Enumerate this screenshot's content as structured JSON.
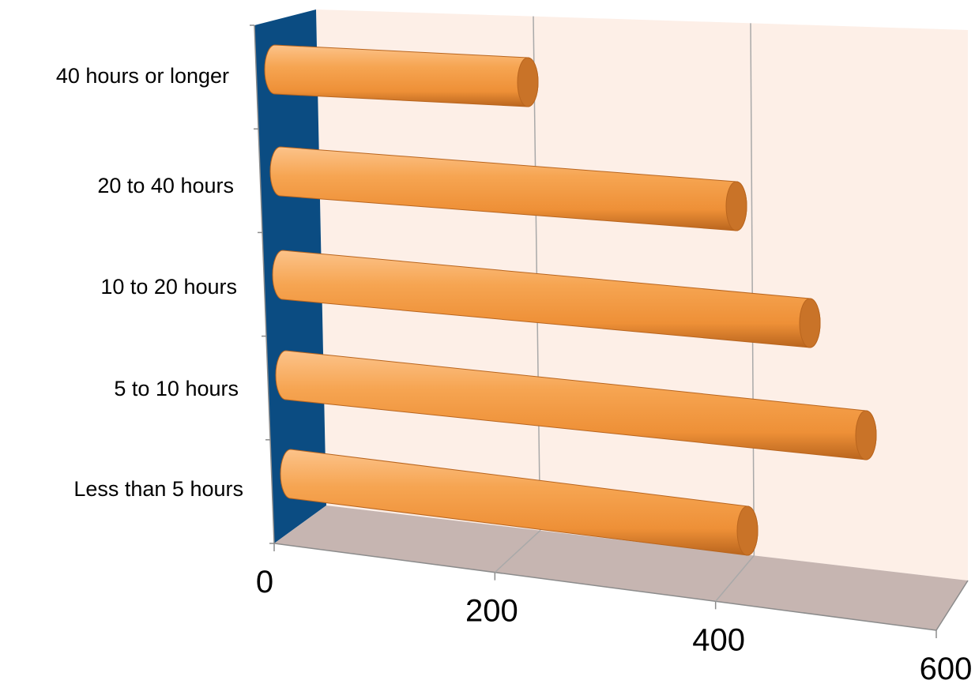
{
  "colors": {
    "back_wall": "#fdefe7",
    "side_wall": "#0b4c82",
    "floor": "#c6b5b1",
    "grid": "#a9a9a9",
    "bar_light": "#fbb36e",
    "bar_mid": "#f39a45",
    "bar_dark": "#b9651e",
    "bar_cap": "#c97328"
  },
  "chart_data": {
    "type": "bar",
    "orientation": "horizontal",
    "style": "3d-cylinder",
    "title": "",
    "xlabel": "",
    "ylabel": "",
    "categories": [
      "Less than 5 hours",
      "5 to 10 hours",
      "10 to 20 hours",
      "20 to 40 hours",
      "40 hours or longer"
    ],
    "values": [
      420,
      535,
      480,
      425,
      245
    ],
    "xlim": [
      0,
      600
    ],
    "xticks": [
      "0",
      "200",
      "400",
      "600"
    ],
    "grid": true,
    "legend": "none"
  }
}
